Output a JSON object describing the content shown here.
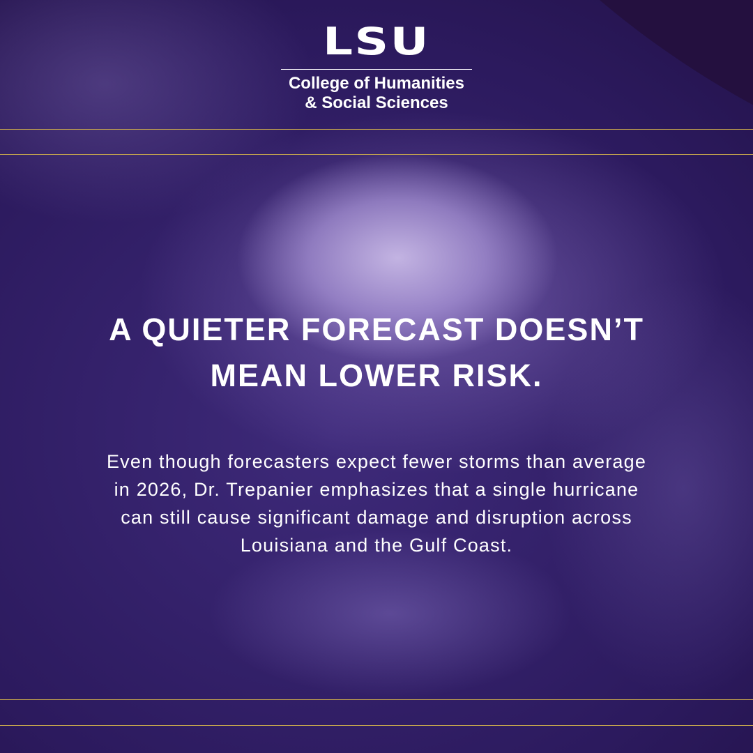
{
  "logo": {
    "text": "LSU"
  },
  "college": {
    "line1": "College of Humanities",
    "line2": "& Social Sciences"
  },
  "headline": "A QUIETER FORECAST DOESN’T MEAN LOWER RISK.",
  "body": "Even though forecasters expect fewer storms than average in 2026, Dr. Trepanier emphasizes that a single hurricane can still cause significant damage and disruption across Louisiana and the Gulf Coast."
}
